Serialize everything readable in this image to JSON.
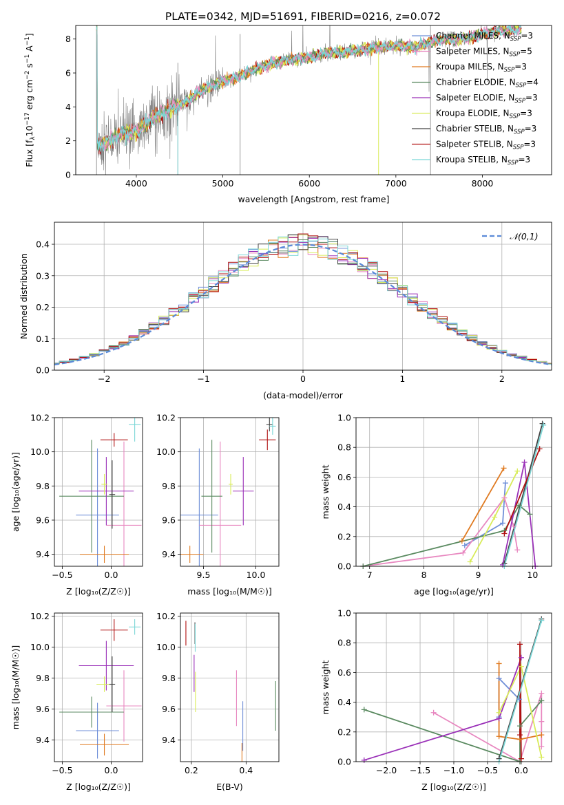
{
  "figure_title": "PLATE=0342, MJD=51691, FIBERID=0216, z=0.072",
  "colors": {
    "Chabrier MILES": "#6f8fd8",
    "Salpeter MILES": "#e888c0",
    "Kroupa MILES": "#e07a20",
    "Chabrier ELODIE": "#5a8a60",
    "Salpeter ELODIE": "#9a30b8",
    "Kroupa ELODIE": "#d8ec58",
    "Chabrier STELIB": "#444444",
    "Salpeter STELIB": "#b01010",
    "Kroupa STELIB": "#7ad6d6",
    "data": "#7f7f7f",
    "gauss": "#5a8ad8",
    "grid": "#b0b0b0"
  },
  "chart_data": [
    {
      "id": "spectrum",
      "type": "line",
      "title": "PLATE=0342, MJD=51691, FIBERID=0216, z=0.072",
      "xlabel": "wavelength [Angstrom, rest frame]",
      "ylabel_parts": [
        "Flux [f",
        "λ",
        "10",
        "−17",
        " erg cm",
        "−2",
        " s",
        "−1",
        " A",
        "−1",
        "]"
      ],
      "xlim": [
        3300,
        8800
      ],
      "ylim": [
        0,
        8.8
      ],
      "xticks": [
        4000,
        5000,
        6000,
        7000,
        8000
      ],
      "yticks": [
        0,
        2,
        4,
        6,
        8
      ],
      "legend_position": "upper right",
      "legend": [
        {
          "name": "Chabrier MILES",
          "nssp": "3"
        },
        {
          "name": "Salpeter MILES",
          "nssp": "5"
        },
        {
          "name": "Kroupa MILES",
          "nssp": "3"
        },
        {
          "name": "Chabrier ELODIE",
          "nssp": "4"
        },
        {
          "name": "Salpeter ELODIE",
          "nssp": "3"
        },
        {
          "name": "Kroupa ELODIE",
          "nssp": "3"
        },
        {
          "name": "Chabrier STELIB",
          "nssp": "3"
        },
        {
          "name": "Salpeter STELIB",
          "nssp": "3"
        },
        {
          "name": "Kroupa STELIB",
          "nssp": "3"
        }
      ],
      "continuum": [
        [
          3550,
          1.7
        ],
        [
          3700,
          2.0
        ],
        [
          3850,
          2.5
        ],
        [
          4000,
          2.5
        ],
        [
          4200,
          3.4
        ],
        [
          4400,
          3.9
        ],
        [
          4600,
          4.4
        ],
        [
          4800,
          5.1
        ],
        [
          5000,
          5.5
        ],
        [
          5200,
          5.8
        ],
        [
          5400,
          6.3
        ],
        [
          5600,
          6.6
        ],
        [
          5800,
          6.8
        ],
        [
          6000,
          6.9
        ],
        [
          6200,
          7.2
        ],
        [
          6400,
          7.2
        ],
        [
          6600,
          7.4
        ],
        [
          6800,
          7.5
        ],
        [
          7000,
          7.6
        ],
        [
          7200,
          7.5
        ],
        [
          7400,
          7.8
        ],
        [
          7600,
          8.0
        ],
        [
          7800,
          8.0
        ],
        [
          8000,
          8.3
        ],
        [
          8200,
          8.5
        ],
        [
          8400,
          8.6
        ]
      ],
      "data_x_range": [
        3540,
        8450
      ],
      "model_x_range": [
        3540,
        8450
      ],
      "data_dips": [
        [
          3540,
          0
        ],
        [
          4480,
          0
        ],
        [
          5200,
          0
        ],
        [
          7400,
          0
        ]
      ],
      "yellow_dip": [
        6800,
        0
      ],
      "grid": false
    },
    {
      "id": "residuals",
      "type": "histogram",
      "xlabel": "(data-model)/error",
      "ylabel": "Normed distribution",
      "xlim": [
        -2.5,
        2.5
      ],
      "ylim": [
        0,
        0.47
      ],
      "xticks": [
        -2,
        -1,
        0,
        1,
        2
      ],
      "yticks": [
        0.0,
        0.1,
        0.2,
        0.3,
        0.4
      ],
      "bin_width": 0.1,
      "legend": [
        "𝒩(0,1)"
      ],
      "legend_position": "upper right",
      "grid": true
    },
    {
      "id": "age_vs_Z",
      "type": "errorbar",
      "xlabel": "Z [log₁₀(Z/Z☉)]",
      "ylabel": "age  [log₁₀(age/yr)]",
      "xlim": [
        -0.58,
        0.32
      ],
      "ylim": [
        9.33,
        10.2
      ],
      "xticks": [
        -0.5,
        0.0
      ],
      "yticks": [
        9.4,
        9.6,
        9.8,
        10.0,
        10.2
      ],
      "points": [
        {
          "model": "Chabrier MILES",
          "x": -0.14,
          "y": 9.63,
          "xerr": 0.22,
          "yerr": 0.39
        },
        {
          "model": "Salpeter MILES",
          "x": 0.13,
          "y": 9.57,
          "xerr": 0.18,
          "yerr": 0.49
        },
        {
          "model": "Kroupa MILES",
          "x": -0.07,
          "y": 9.4,
          "xerr": 0.25,
          "yerr": 0.05
        },
        {
          "model": "Chabrier ELODIE",
          "x": -0.2,
          "y": 9.74,
          "xerr": 0.33,
          "yerr": 0.33
        },
        {
          "model": "Salpeter ELODIE",
          "x": -0.05,
          "y": 9.77,
          "xerr": 0.28,
          "yerr": 0.2
        },
        {
          "model": "Kroupa ELODIE",
          "x": -0.07,
          "y": 9.81,
          "xerr": 0.03,
          "yerr": 0.06
        },
        {
          "model": "Chabrier STELIB",
          "x": 0.01,
          "y": 9.75,
          "xerr": 0.03,
          "yerr": 0.2
        },
        {
          "model": "Salpeter STELIB",
          "x": 0.03,
          "y": 10.07,
          "xerr": 0.14,
          "yerr": 0.04
        },
        {
          "model": "Kroupa STELIB",
          "x": 0.24,
          "y": 10.16,
          "xerr": 0.06,
          "yerr": 0.1
        }
      ],
      "grid": true
    },
    {
      "id": "age_vs_mass",
      "type": "errorbar",
      "xlabel": "mass [log₁₀(M/M☉)]",
      "ylabel": "",
      "xlim": [
        9.28,
        10.22
      ],
      "ylim": [
        9.33,
        10.2
      ],
      "xticks": [
        9.5,
        10.0
      ],
      "yticks": [
        9.4,
        9.6,
        9.8,
        10.0,
        10.2
      ],
      "points": [
        {
          "model": "Chabrier MILES",
          "x": 9.46,
          "y": 9.63,
          "xerr": 0.18,
          "yerr": 0.39
        },
        {
          "model": "Salpeter MILES",
          "x": 9.66,
          "y": 9.57,
          "xerr": 0.2,
          "yerr": 0.49
        },
        {
          "model": "Kroupa MILES",
          "x": 9.37,
          "y": 9.4,
          "xerr": 0.13,
          "yerr": 0.05
        },
        {
          "model": "Chabrier ELODIE",
          "x": 9.58,
          "y": 9.74,
          "xerr": 0.1,
          "yerr": 0.33
        },
        {
          "model": "Salpeter ELODIE",
          "x": 9.88,
          "y": 9.77,
          "xerr": 0.1,
          "yerr": 0.2
        },
        {
          "model": "Kroupa ELODIE",
          "x": 9.76,
          "y": 9.81,
          "xerr": 0.02,
          "yerr": 0.06
        },
        {
          "model": "Chabrier STELIB",
          "x": 10.13,
          "y": 10.16,
          "xerr": 0.03,
          "yerr": 0.04
        },
        {
          "model": "Salpeter STELIB",
          "x": 10.11,
          "y": 10.07,
          "xerr": 0.08,
          "yerr": 0.06
        },
        {
          "model": "Kroupa STELIB",
          "x": 10.16,
          "y": 10.15,
          "xerr": 0.03,
          "yerr": 0.05
        }
      ],
      "grid": true
    },
    {
      "id": "weight_vs_age",
      "type": "line",
      "xlabel": "age  [log₁₀(age/yr)]",
      "ylabel": "mass weight",
      "xlim": [
        6.75,
        10.35
      ],
      "ylim": [
        0,
        1.0
      ],
      "xticks": [
        7,
        8,
        9,
        10
      ],
      "yticks": [
        0.0,
        0.2,
        0.4,
        0.6,
        0.8,
        1.0
      ],
      "series": [
        {
          "model": "Chabrier MILES",
          "points": [
            [
              8.75,
              0.14
            ],
            [
              9.45,
              0.29
            ],
            [
              9.5,
              0.56
            ]
          ]
        },
        {
          "model": "Salpeter MILES",
          "points": [
            [
              6.88,
              0.0
            ],
            [
              8.72,
              0.09
            ],
            [
              9.48,
              0.46
            ],
            [
              9.65,
              0.27
            ],
            [
              9.72,
              0.11
            ]
          ]
        },
        {
          "model": "Kroupa MILES",
          "points": [
            [
              8.7,
              0.17
            ],
            [
              9.47,
              0.66
            ]
          ]
        },
        {
          "model": "Chabrier ELODIE",
          "points": [
            [
              6.88,
              0.0
            ],
            [
              9.48,
              0.24
            ],
            [
              9.75,
              0.41
            ],
            [
              9.95,
              0.35
            ]
          ]
        },
        {
          "model": "Salpeter ELODIE",
          "points": [
            [
              9.45,
              0.01
            ],
            [
              9.85,
              0.7
            ],
            [
              10.05,
              0.0
            ]
          ]
        },
        {
          "model": "Kroupa ELODIE",
          "points": [
            [
              8.85,
              0.03
            ],
            [
              9.3,
              0.33
            ],
            [
              9.72,
              0.64
            ]
          ]
        },
        {
          "model": "Chabrier STELIB",
          "points": [
            [
              9.48,
              0.02
            ],
            [
              10.18,
              0.96
            ]
          ]
        },
        {
          "model": "Salpeter STELIB",
          "points": [
            [
              9.48,
              0.22
            ],
            [
              10.13,
              0.79
            ]
          ]
        },
        {
          "model": "Kroupa STELIB",
          "points": [
            [
              9.48,
              0.0
            ],
            [
              10.2,
              0.95
            ]
          ]
        }
      ],
      "grid": true
    },
    {
      "id": "mass_vs_Z",
      "type": "errorbar",
      "xlabel": "Z [log₁₀(Z/Z☉)]",
      "ylabel": "mass [log₁₀(M/M☉)]",
      "xlim": [
        -0.58,
        0.32
      ],
      "ylim": [
        9.26,
        10.22
      ],
      "xticks": [
        -0.5,
        0.0
      ],
      "yticks": [
        9.4,
        9.6,
        9.8,
        10.0,
        10.2
      ],
      "points": [
        {
          "model": "Chabrier MILES",
          "x": -0.14,
          "y": 9.46,
          "xerr": 0.22,
          "yerr": 0.18
        },
        {
          "model": "Salpeter MILES",
          "x": 0.13,
          "y": 9.62,
          "xerr": 0.18,
          "yerr": 0.23
        },
        {
          "model": "Kroupa MILES",
          "x": -0.07,
          "y": 9.37,
          "xerr": 0.25,
          "yerr": 0.07
        },
        {
          "model": "Chabrier ELODIE",
          "x": -0.2,
          "y": 9.58,
          "xerr": 0.33,
          "yerr": 0.1
        },
        {
          "model": "Salpeter ELODIE",
          "x": -0.05,
          "y": 9.88,
          "xerr": 0.28,
          "yerr": 0.16
        },
        {
          "model": "Kroupa ELODIE",
          "x": -0.07,
          "y": 9.76,
          "xerr": 0.08,
          "yerr": 0.05
        },
        {
          "model": "Chabrier STELIB",
          "x": 0.01,
          "y": 9.76,
          "xerr": 0.03,
          "yerr": 0.18
        },
        {
          "model": "Salpeter STELIB",
          "x": 0.03,
          "y": 10.11,
          "xerr": 0.14,
          "yerr": 0.07
        },
        {
          "model": "Kroupa STELIB",
          "x": 0.24,
          "y": 10.13,
          "xerr": 0.06,
          "yerr": 0.05
        }
      ],
      "grid": true
    },
    {
      "id": "mass_vs_ebv",
      "type": "errorbar",
      "xlabel": "E(B-V)",
      "ylabel": "",
      "xlim": [
        0.16,
        0.52
      ],
      "ylim": [
        9.26,
        10.22
      ],
      "xticks": [
        0.2,
        0.4
      ],
      "yticks": [
        9.4,
        9.6,
        9.8,
        10.0,
        10.2
      ],
      "points": [
        {
          "model": "Chabrier MILES",
          "x": 0.388,
          "y": 9.49,
          "xerr": 0,
          "yerr": 0.16
        },
        {
          "model": "Salpeter MILES",
          "x": 0.365,
          "y": 9.67,
          "xerr": 0,
          "yerr": 0.18
        },
        {
          "model": "Kroupa MILES",
          "x": 0.385,
          "y": 9.32,
          "xerr": 0,
          "yerr": 0.06
        },
        {
          "model": "Chabrier ELODIE",
          "x": 0.508,
          "y": 9.62,
          "xerr": 0,
          "yerr": 0.16
        },
        {
          "model": "Salpeter ELODIE",
          "x": 0.21,
          "y": 9.83,
          "xerr": 0,
          "yerr": 0.12
        },
        {
          "model": "Kroupa ELODIE",
          "x": 0.215,
          "y": 9.71,
          "xerr": 0,
          "yerr": 0.13
        },
        {
          "model": "Chabrier STELIB",
          "x": 0.213,
          "y": 10.09,
          "xerr": 0,
          "yerr": 0.07
        },
        {
          "model": "Salpeter STELIB",
          "x": 0.18,
          "y": 10.09,
          "xerr": 0,
          "yerr": 0.08
        },
        {
          "model": "Kroupa STELIB",
          "x": 0.214,
          "y": 10.06,
          "xerr": 0,
          "yerr": 0.09
        }
      ],
      "grid": true
    },
    {
      "id": "weight_vs_Z",
      "type": "line",
      "xlabel": "Z [log₁₀(Z/Z☉)]",
      "ylabel": "mass weight",
      "xlim": [
        -2.45,
        0.45
      ],
      "ylim": [
        0,
        1.0
      ],
      "xticks": [
        -2.0,
        -1.5,
        -1.0,
        -0.5,
        0.0
      ],
      "yticks": [
        0.0,
        0.2,
        0.4,
        0.6,
        0.8,
        1.0
      ],
      "series": [
        {
          "model": "Chabrier MILES",
          "points": [
            [
              -0.33,
              0.3
            ],
            [
              -0.33,
              0.56
            ],
            [
              -0.03,
              0.42
            ]
          ]
        },
        {
          "model": "Salpeter MILES",
          "points": [
            [
              -1.3,
              0.33
            ],
            [
              -0.02,
              0.0
            ],
            [
              0.3,
              0.46
            ],
            [
              0.3,
              0.27
            ],
            [
              0.3,
              0.1
            ]
          ]
        },
        {
          "model": "Kroupa MILES",
          "points": [
            [
              -0.33,
              0.66
            ],
            [
              -0.33,
              0.17
            ],
            [
              -0.02,
              0.15
            ],
            [
              0.3,
              0.18
            ]
          ]
        },
        {
          "model": "Chabrier ELODIE",
          "points": [
            [
              -2.33,
              0.35
            ],
            [
              -0.02,
              0.0
            ],
            [
              -0.02,
              0.24
            ],
            [
              0.3,
              0.41
            ]
          ]
        },
        {
          "model": "Salpeter ELODIE",
          "points": [
            [
              -2.33,
              0.01
            ],
            [
              -0.33,
              0.29
            ],
            [
              0.0,
              0.7
            ]
          ]
        },
        {
          "model": "Kroupa ELODIE",
          "points": [
            [
              -0.33,
              0.33
            ],
            [
              0.0,
              0.64
            ],
            [
              0.3,
              0.03
            ]
          ]
        },
        {
          "model": "Chabrier STELIB",
          "points": [
            [
              -0.33,
              0.02
            ],
            [
              0.3,
              0.96
            ]
          ]
        },
        {
          "model": "Salpeter STELIB",
          "points": [
            [
              -0.02,
              0.18
            ],
            [
              -0.02,
              0.79
            ],
            [
              0.0,
              0.02
            ]
          ]
        },
        {
          "model": "Kroupa STELIB",
          "points": [
            [
              -0.33,
              0.0
            ],
            [
              0.3,
              0.95
            ]
          ]
        }
      ],
      "grid": true
    }
  ]
}
